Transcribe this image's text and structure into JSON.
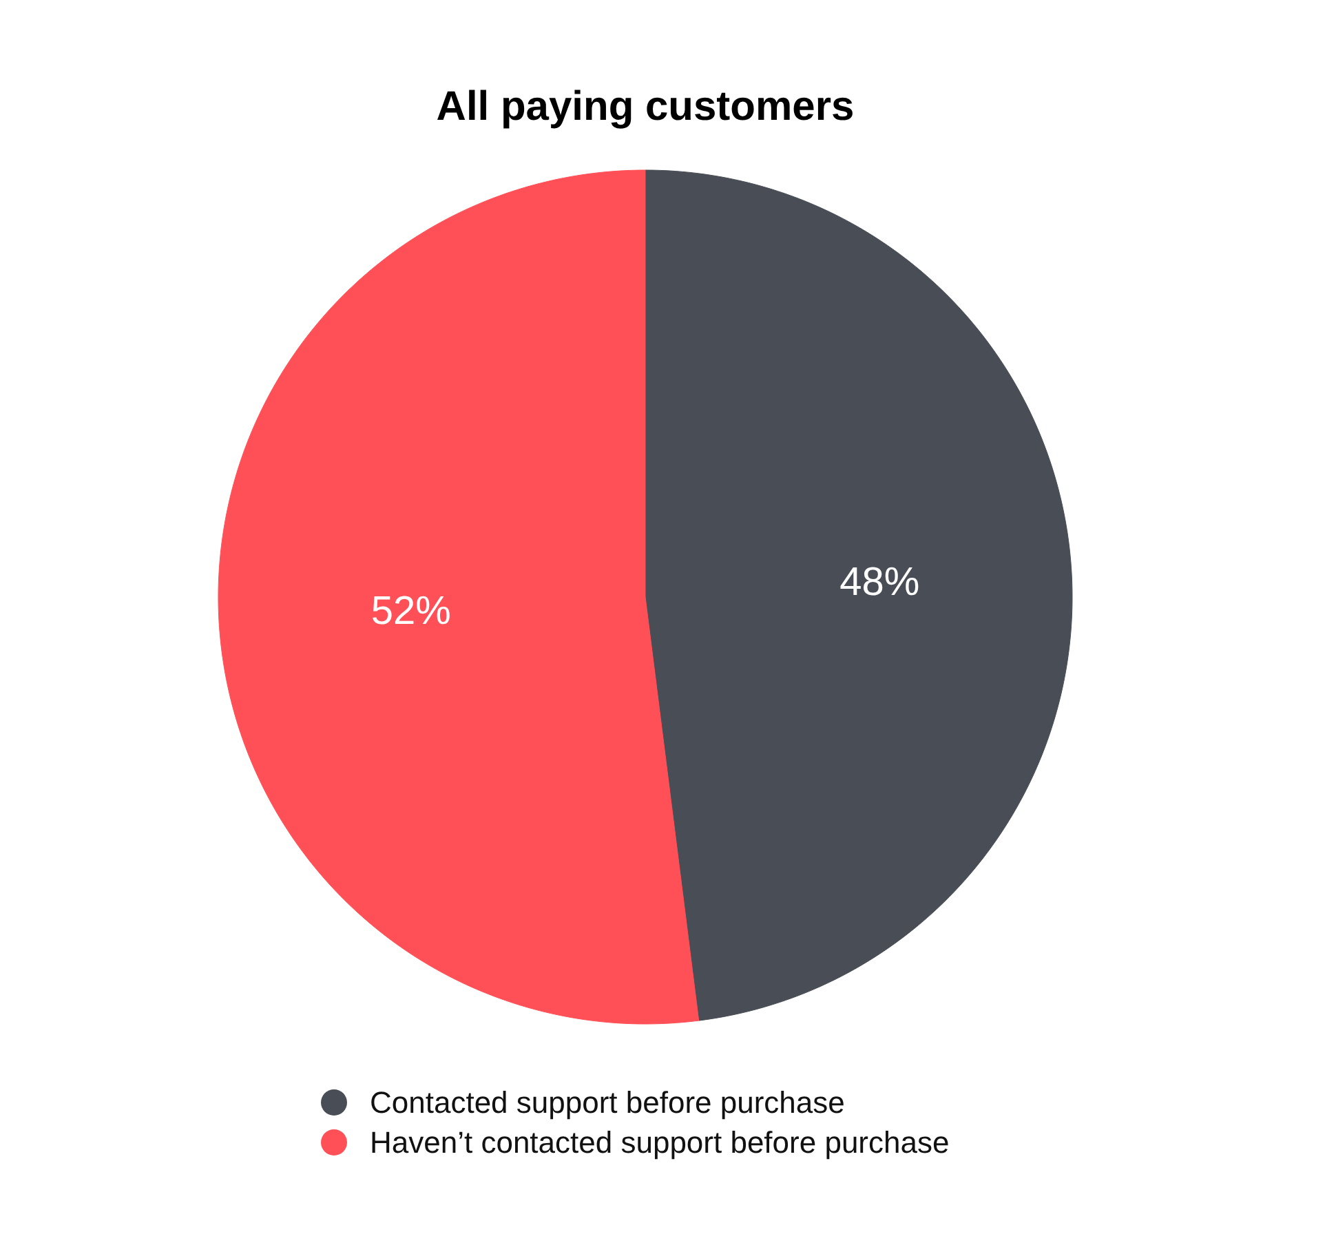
{
  "chart_data": {
    "type": "pie",
    "title": "All paying customers",
    "categories": [
      "Contacted support before purchase",
      "Haven’t contacted support before purchase"
    ],
    "values": [
      48,
      52
    ],
    "colors": [
      "#494d56",
      "#fe5056"
    ],
    "value_labels": [
      "48%",
      "52%"
    ],
    "legend": "bottom"
  }
}
